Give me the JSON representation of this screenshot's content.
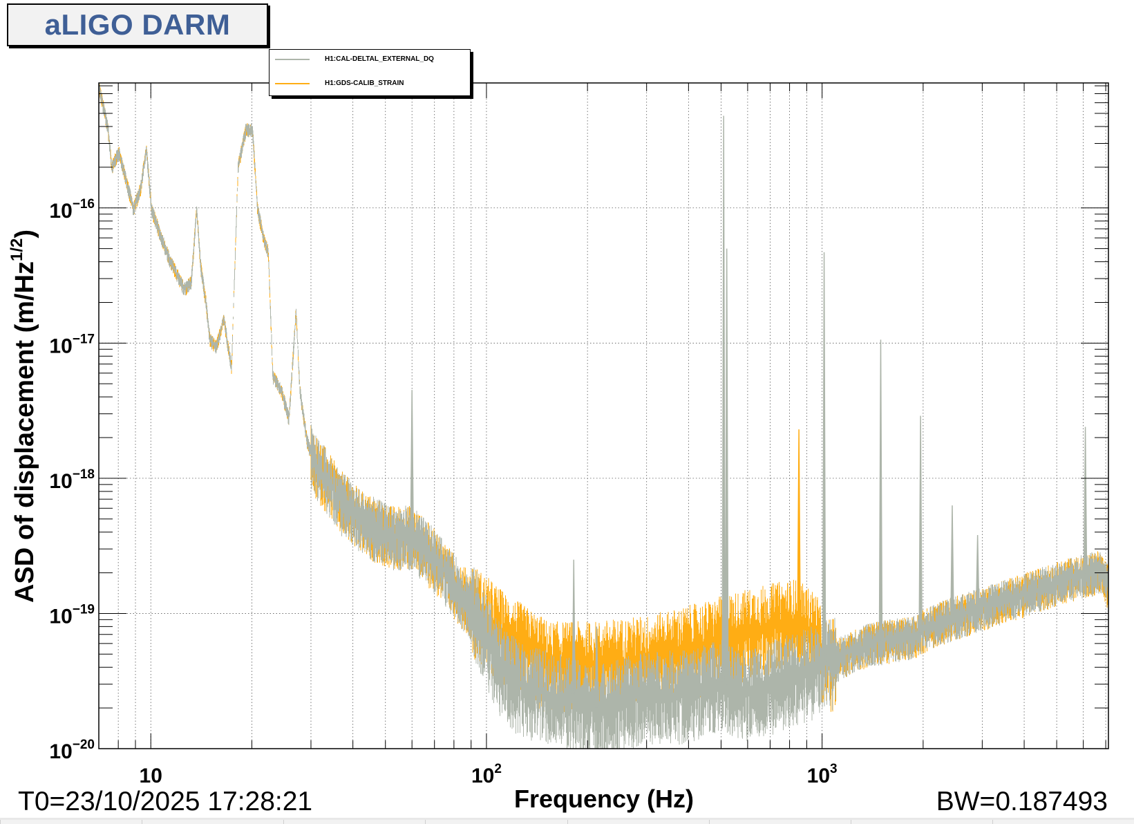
{
  "title": "aLIGO DARM",
  "legend": [
    {
      "label": "H1:CAL-DELTAL_EXTERNAL_DQ",
      "color": "#adb5aa"
    },
    {
      "label": "H1:GDS-CALIB_STRAIN",
      "color": "#ffad14"
    }
  ],
  "footer": {
    "t0": "T0=23/10/2025 17:28:21",
    "bw": "BW=0.187493"
  },
  "chart_data": {
    "type": "line",
    "title": "aLIGO DARM",
    "xlabel": "Frequency (Hz)",
    "ylabel": "ASD of displacement (m/Hz",
    "ylabel_sup": "1/2",
    "ylabel_end": ")",
    "xscale": "log",
    "yscale": "log",
    "xlim": [
      7,
      7130
    ],
    "ylim": [
      1e-20,
      8.4e-16
    ],
    "grid": true,
    "legend_position": "top-left",
    "x_ticks": [
      {
        "value": 10,
        "base": "10",
        "exp": ""
      },
      {
        "value": 100,
        "base": "10",
        "exp": "2"
      },
      {
        "value": 1000,
        "base": "10",
        "exp": "3"
      }
    ],
    "y_ticks": [
      {
        "value": 1e-16,
        "base": "10",
        "exp": "−16"
      },
      {
        "value": 1e-17,
        "base": "10",
        "exp": "−17"
      },
      {
        "value": 1e-18,
        "base": "10",
        "exp": "−18"
      },
      {
        "value": 1e-19,
        "base": "10",
        "exp": "−19"
      },
      {
        "value": 1e-20,
        "base": "10",
        "exp": "−20"
      }
    ],
    "series": [
      {
        "name": "H1:GDS-CALIB_STRAIN",
        "color": "#ffad14",
        "points": [
          [
            7.0,
            8.1e-16
          ],
          [
            7.46,
            3.8e-16
          ],
          [
            7.65,
            2e-16
          ],
          [
            8.04,
            2.6e-16
          ],
          [
            8.45,
            1.6e-16
          ],
          [
            8.88,
            9.8e-17
          ],
          [
            9.33,
            1.4e-16
          ],
          [
            9.7,
            2.8e-16
          ],
          [
            10.05,
            9.8e-17
          ],
          [
            10.6,
            6.7e-17
          ],
          [
            11.4,
            4.1e-17
          ],
          [
            12.6,
            2.5e-17
          ],
          [
            13.2,
            2.85e-17
          ],
          [
            13.7,
            9.8e-17
          ],
          [
            14.1,
            3.6e-17
          ],
          [
            14.6,
            2e-17
          ],
          [
            15.0,
            1.06e-17
          ],
          [
            15.7,
            9.4e-18
          ],
          [
            16.5,
            1.54e-17
          ],
          [
            17.4,
            6.5e-18
          ],
          [
            18.2,
            2e-16
          ],
          [
            19.2,
            3.8e-16
          ],
          [
            20.1,
            3.8e-16
          ],
          [
            20.8,
            9.8e-17
          ],
          [
            21.7,
            6e-17
          ],
          [
            22.4,
            4.7e-17
          ],
          [
            23.1,
            5.7e-18
          ],
          [
            24.5,
            4.5e-18
          ],
          [
            25.8,
            2.75e-18
          ],
          [
            27.1,
            1.74e-17
          ],
          [
            27.8,
            4.5e-18
          ],
          [
            29.2,
            1.9e-18
          ],
          [
            30.7,
            1.3e-18
          ],
          [
            33.1,
            1.03e-18
          ],
          [
            36.5,
            7.1e-19
          ],
          [
            42.4,
            4.9e-19
          ],
          [
            51.7,
            3.8e-19
          ],
          [
            60,
            3.8e-19
          ],
          [
            69.6,
            2.6e-19
          ],
          [
            80.8,
            1.62e-19
          ],
          [
            93.8,
            1.05e-19
          ],
          [
            114,
            6.8e-20
          ],
          [
            154,
            4.2e-20
          ],
          [
            208,
            4.2e-20
          ],
          [
            308,
            4.7e-20
          ],
          [
            459,
            6e-20
          ],
          [
            532,
            6.8e-20
          ],
          [
            649,
            7.7e-20
          ],
          [
            832,
            8.7e-20
          ],
          [
            966,
            6.8e-20
          ],
          [
            1014,
            4.2e-20
          ],
          [
            1367,
            6e-20
          ],
          [
            1843,
            6.8e-20
          ],
          [
            2244,
            8.7e-20
          ],
          [
            3025,
            1.12e-19
          ],
          [
            4076,
            1.43e-19
          ],
          [
            5485,
            1.83e-19
          ],
          [
            6683,
            2.07e-19
          ],
          [
            7130,
            1.6e-19
          ]
        ],
        "peaks": [
          [
            853,
            2.3e-18
          ]
        ]
      },
      {
        "name": "H1:CAL-DELTAL_EXTERNAL_DQ",
        "color": "#adb5aa",
        "points": [
          [
            7.0,
            8.1e-16
          ],
          [
            7.46,
            3.8e-16
          ],
          [
            7.65,
            2e-16
          ],
          [
            8.04,
            2.6e-16
          ],
          [
            8.45,
            1.6e-16
          ],
          [
            8.88,
            9.8e-17
          ],
          [
            9.33,
            1.4e-16
          ],
          [
            9.7,
            2.8e-16
          ],
          [
            10.05,
            9.8e-17
          ],
          [
            10.6,
            6.7e-17
          ],
          [
            11.4,
            4.1e-17
          ],
          [
            12.6,
            2.5e-17
          ],
          [
            13.2,
            2.85e-17
          ],
          [
            13.7,
            9.8e-17
          ],
          [
            14.1,
            3.6e-17
          ],
          [
            14.6,
            2e-17
          ],
          [
            15.0,
            1.06e-17
          ],
          [
            15.7,
            9.4e-18
          ],
          [
            16.5,
            1.54e-17
          ],
          [
            17.4,
            6.5e-18
          ],
          [
            18.2,
            2e-16
          ],
          [
            19.2,
            3.8e-16
          ],
          [
            20.1,
            3.8e-16
          ],
          [
            20.8,
            9.8e-17
          ],
          [
            21.7,
            6e-17
          ],
          [
            22.4,
            4.7e-17
          ],
          [
            23.1,
            5.7e-18
          ],
          [
            24.5,
            4.5e-18
          ],
          [
            25.8,
            2.75e-18
          ],
          [
            27.1,
            1.74e-17
          ],
          [
            27.8,
            4.5e-18
          ],
          [
            29.2,
            1.9e-18
          ],
          [
            30.7,
            1.3e-18
          ],
          [
            33.1,
            1.03e-18
          ],
          [
            36.5,
            7.1e-19
          ],
          [
            42.4,
            4.9e-19
          ],
          [
            51.7,
            3.8e-19
          ],
          [
            60,
            3.8e-19
          ],
          [
            69.6,
            2.6e-19
          ],
          [
            80.8,
            1.62e-19
          ],
          [
            93.8,
            9.9e-20
          ],
          [
            109,
            4.2e-20
          ],
          [
            126,
            2.9e-20
          ],
          [
            154,
            2.55e-20
          ],
          [
            208,
            2e-20
          ],
          [
            253,
            2.25e-20
          ],
          [
            308,
            2.55e-20
          ],
          [
            376,
            2.55e-20
          ],
          [
            459,
            2.9e-20
          ],
          [
            507,
            3.1e-20
          ],
          [
            560,
            2.55e-20
          ],
          [
            682,
            2.9e-20
          ],
          [
            832,
            3.5e-20
          ],
          [
            1014,
            4.2e-20
          ],
          [
            1367,
            6e-20
          ],
          [
            1843,
            6.8e-20
          ],
          [
            2244,
            8.7e-20
          ],
          [
            3025,
            1.12e-19
          ],
          [
            4076,
            1.43e-19
          ],
          [
            5485,
            1.83e-19
          ],
          [
            6683,
            2.07e-19
          ],
          [
            7130,
            1.7e-19
          ]
        ],
        "peaks": [
          [
            60,
            4.5e-18
          ],
          [
            182,
            2.5e-19
          ],
          [
            213,
            8e-20
          ],
          [
            509,
            4.8e-16
          ],
          [
            520,
            5e-17
          ],
          [
            1014,
            4.7e-17
          ],
          [
            1495,
            1.06e-17
          ],
          [
            1965,
            2.9e-18
          ],
          [
            2442,
            6.3e-19
          ],
          [
            2906,
            3.8e-19
          ],
          [
            6085,
            2.4e-18
          ]
        ]
      }
    ]
  }
}
